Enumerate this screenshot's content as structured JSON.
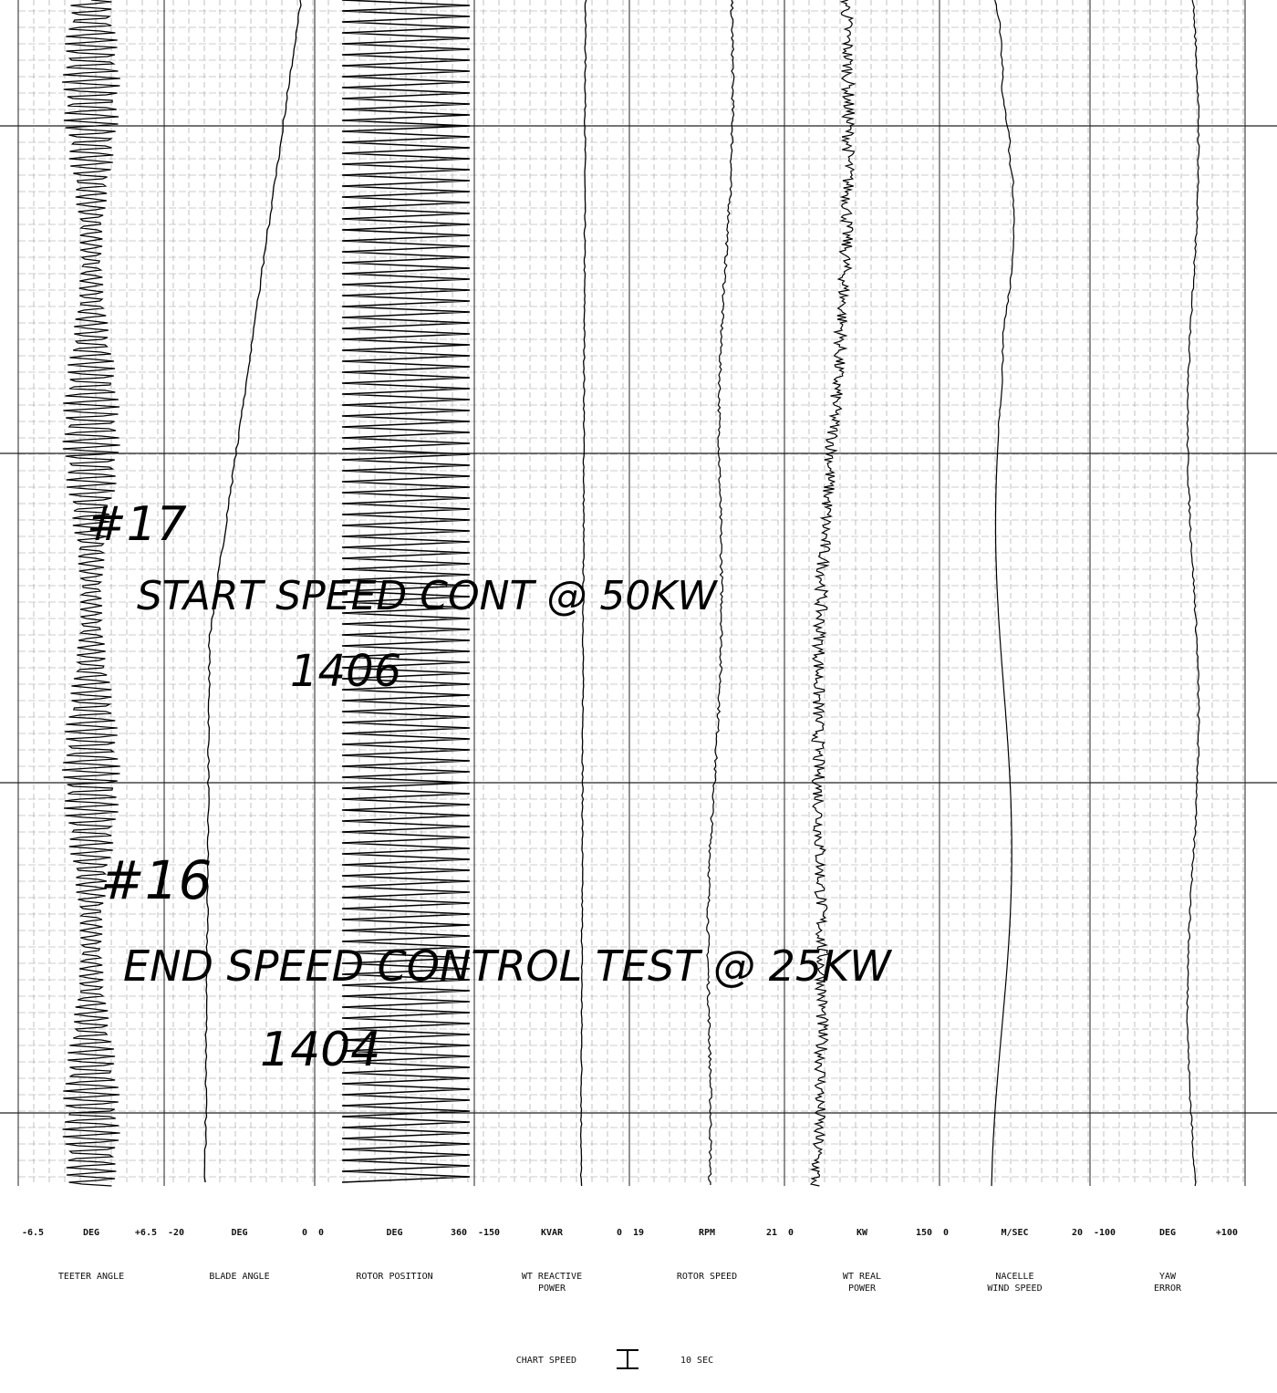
{
  "channels": [
    {
      "min": "-6.5",
      "unit": "DEG",
      "max": "+6.5",
      "name": [
        "TEETER ANGLE"
      ]
    },
    {
      "min": "-20",
      "unit": "DEG",
      "max": "0",
      "name": [
        "BLADE ANGLE"
      ]
    },
    {
      "min": "0",
      "unit": "DEG",
      "max": "360",
      "name": [
        "ROTOR POSITION"
      ]
    },
    {
      "min": "-150",
      "unit": "KVAR",
      "max": "0",
      "name": [
        "WT REACTIVE",
        "POWER"
      ]
    },
    {
      "min": "19",
      "unit": "RPM",
      "max": "21",
      "name": [
        "ROTOR SPEED"
      ]
    },
    {
      "min": "0",
      "unit": "KW",
      "max": "150",
      "name": [
        "WT REAL",
        "POWER"
      ]
    },
    {
      "min": "0",
      "unit": "M/SEC",
      "max": "20",
      "name": [
        "NACELLE",
        "WIND SPEED"
      ]
    },
    {
      "min": "-100",
      "unit": "DEG",
      "max": "+100",
      "name": [
        "YAW",
        "ERROR"
      ]
    }
  ],
  "annotations": [
    "#17",
    "START SPEED CONT @ 50KW",
    "1406",
    "#16",
    "END SPEED CONTROL TEST @ 25KW",
    "1404"
  ],
  "chart_speed": {
    "label": "CHART SPEED",
    "value": "10 SEC"
  }
}
